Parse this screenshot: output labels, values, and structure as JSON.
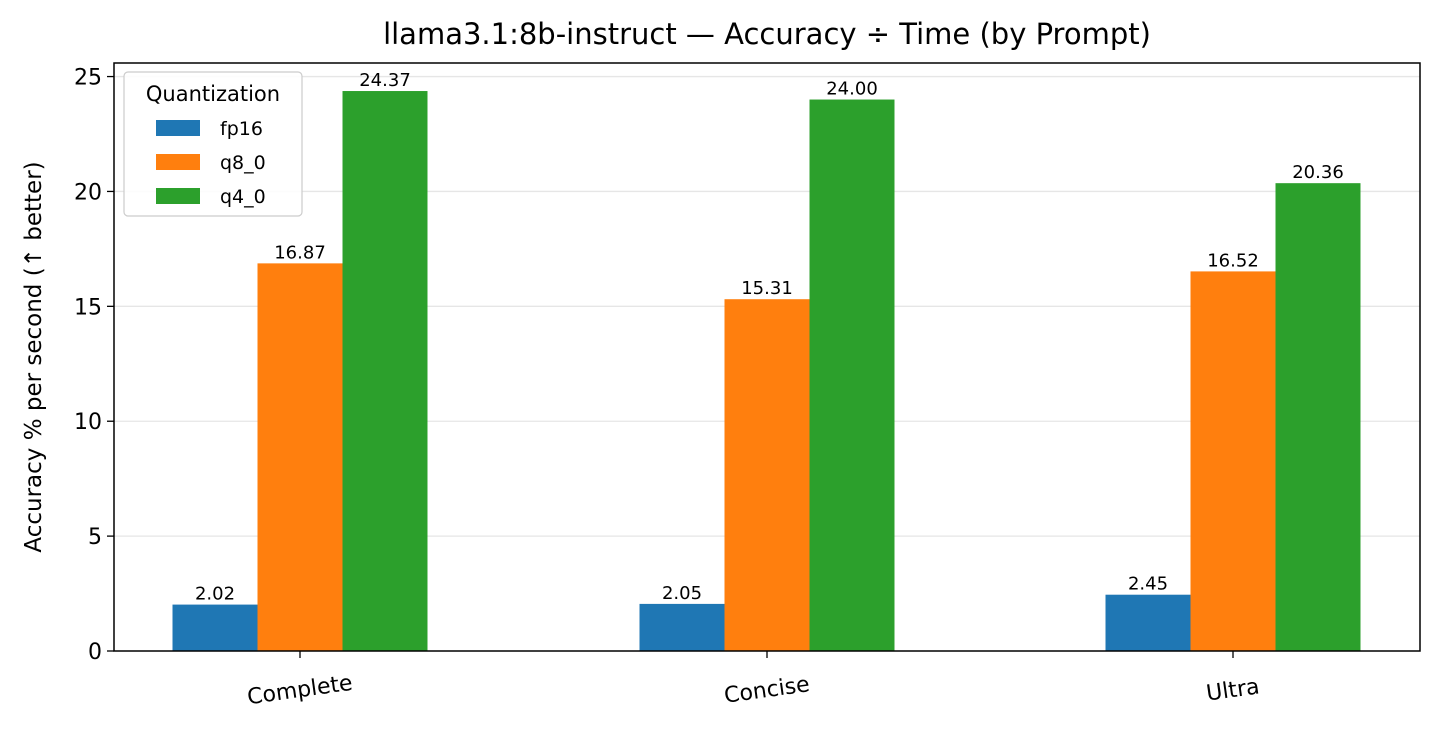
{
  "chart_data": {
    "type": "bar",
    "title": "llama3.1:8b-instruct — Accuracy ÷ Time (by Prompt)",
    "xlabel": "",
    "ylabel": "Accuracy % per second (↑ better)",
    "categories": [
      "Complete",
      "Concise",
      "Ultra"
    ],
    "series": [
      {
        "name": "fp16",
        "color": "#1f77b4",
        "values": [
          2.02,
          2.05,
          2.45
        ],
        "labels": [
          "2.02",
          "2.05",
          "2.45"
        ]
      },
      {
        "name": "q8_0",
        "color": "#ff7f0e",
        "values": [
          16.87,
          15.31,
          16.52
        ],
        "labels": [
          "16.87",
          "15.31",
          "16.52"
        ]
      },
      {
        "name": "q4_0",
        "color": "#2ca02c",
        "values": [
          24.37,
          24.0,
          20.36
        ],
        "labels": [
          "24.37",
          "24.00",
          "20.36"
        ]
      }
    ],
    "ylim": [
      0,
      25.59
    ],
    "yticks": [
      0,
      5,
      10,
      15,
      20,
      25
    ],
    "ytick_labels": [
      "0",
      "5",
      "10",
      "15",
      "20",
      "25"
    ],
    "grid": "y",
    "legend": {
      "title": "Quantization",
      "placement": "top-left"
    }
  }
}
